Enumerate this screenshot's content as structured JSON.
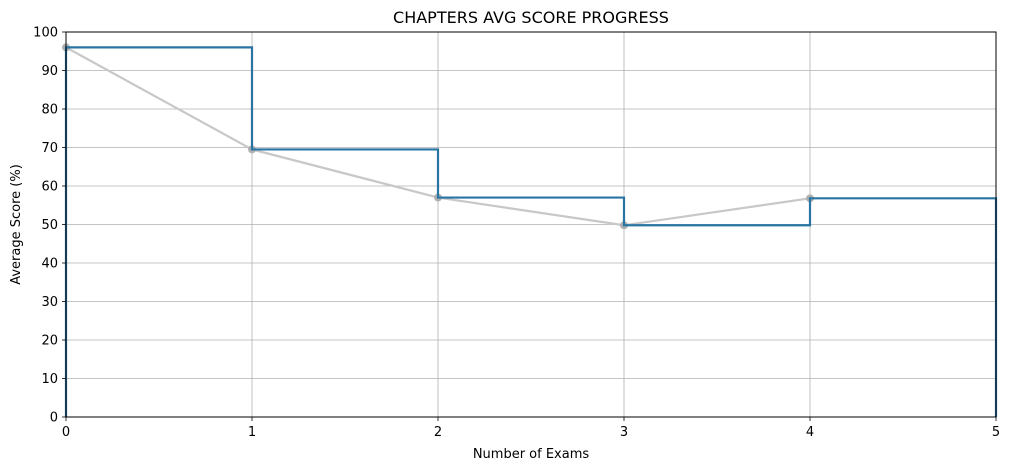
{
  "chart_data": {
    "type": "line",
    "title": "CHAPTERS AVG SCORE PROGRESS",
    "xlabel": "Number of Exams",
    "ylabel": "Average Score (%)",
    "xlim": [
      0,
      5
    ],
    "ylim": [
      0,
      100
    ],
    "x_ticks": [
      "0",
      "1",
      "2",
      "3",
      "4",
      "5"
    ],
    "y_ticks": [
      "0",
      "10",
      "20",
      "30",
      "40",
      "50",
      "60",
      "70",
      "80",
      "90",
      "100"
    ],
    "grid": true,
    "x": [
      0,
      1,
      2,
      3,
      4
    ],
    "series": [
      {
        "style": "step",
        "color": "#2a74a4",
        "values": [
          96,
          69.5,
          57,
          49.8,
          56.8
        ]
      },
      {
        "style": "line-markers",
        "color": "#c8c8c8",
        "values": [
          96,
          69.5,
          57,
          49.8,
          56.8
        ]
      }
    ]
  }
}
